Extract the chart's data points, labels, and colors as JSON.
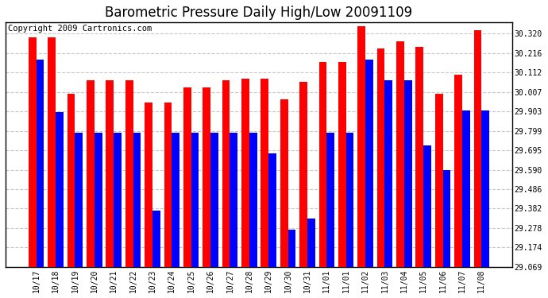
{
  "title": "Barometric Pressure Daily High/Low 20091109",
  "copyright": "Copyright 2009 Cartronics.com",
  "dates": [
    "10/17",
    "10/18",
    "10/19",
    "10/20",
    "10/21",
    "10/22",
    "10/23",
    "10/24",
    "10/25",
    "10/26",
    "10/27",
    "10/28",
    "10/29",
    "10/30",
    "10/31",
    "11/01",
    "11/01",
    "11/02",
    "11/03",
    "11/04",
    "11/05",
    "11/06",
    "11/07",
    "11/08"
  ],
  "highs": [
    30.3,
    30.3,
    30.0,
    30.07,
    30.07,
    30.07,
    29.95,
    29.95,
    30.03,
    30.03,
    30.07,
    30.08,
    30.08,
    29.97,
    30.06,
    30.17,
    30.17,
    30.36,
    30.24,
    30.28,
    30.25,
    30.0,
    30.1,
    30.34
  ],
  "lows": [
    30.18,
    29.9,
    29.79,
    29.79,
    29.79,
    29.79,
    29.37,
    29.79,
    29.79,
    29.79,
    29.79,
    29.79,
    29.68,
    29.27,
    29.33,
    29.79,
    29.79,
    30.18,
    30.07,
    30.07,
    29.72,
    29.59,
    29.91,
    29.91
  ],
  "ylim_min": 29.069,
  "ylim_max": 30.382,
  "yticks": [
    29.069,
    29.174,
    29.278,
    29.382,
    29.486,
    29.59,
    29.695,
    29.799,
    29.903,
    30.007,
    30.112,
    30.216,
    30.32
  ],
  "high_color": "#ff0000",
  "low_color": "#0000ff",
  "bg_color": "#ffffff",
  "grid_color": "#c8c8c8",
  "title_fontsize": 12,
  "copyright_fontsize": 7.5,
  "bar_width": 0.4
}
